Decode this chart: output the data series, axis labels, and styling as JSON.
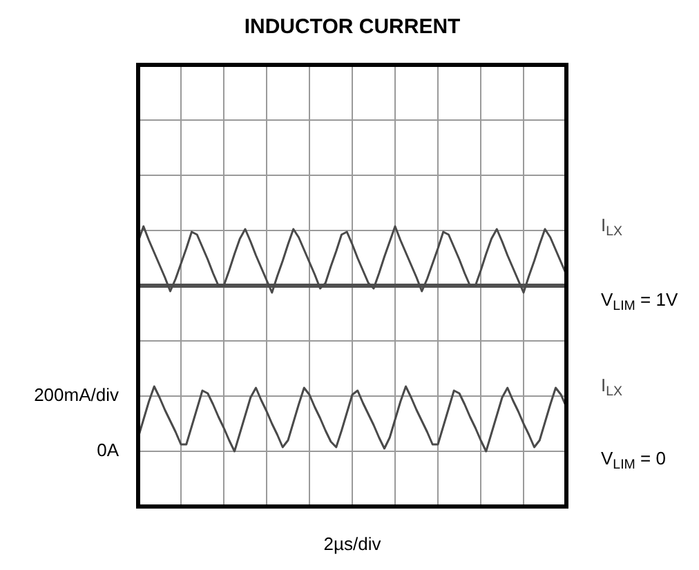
{
  "chart_data": {
    "type": "line",
    "title": "INDUCTOR CURRENT",
    "xlabel": "2µs/div",
    "categories": [
      null,
      null,
      null,
      null,
      null,
      null,
      null,
      null,
      null,
      null,
      null,
      null,
      null,
      null,
      null,
      null,
      null,
      null,
      null,
      null,
      null,
      null,
      null,
      null,
      null,
      null,
      null,
      null,
      null,
      null,
      null,
      null,
      null,
      null,
      null,
      null,
      null,
      null,
      null,
      null,
      null,
      null,
      null,
      null,
      null,
      null,
      null,
      null,
      null,
      null,
      null,
      null,
      null,
      null,
      null,
      null,
      null,
      null,
      null,
      null,
      null,
      null,
      null,
      null,
      null,
      null,
      null,
      null,
      null,
      null,
      null,
      null,
      null,
      null,
      null,
      null,
      null,
      null,
      null,
      null,
      null
    ],
    "ylim": [
      -200,
      1400
    ],
    "yticks": [
      {
        "value": -200,
        "label": null
      },
      {
        "value": 0,
        "label": "0A"
      },
      {
        "value": 200,
        "label": "200mA/div"
      },
      {
        "value": 400,
        "label": null
      },
      {
        "value": 600,
        "label": null
      },
      {
        "value": 800,
        "label": null
      },
      {
        "value": 1000,
        "label": null
      },
      {
        "value": 1200,
        "label": null
      },
      {
        "value": 1400,
        "label": null
      }
    ],
    "tick_labels": "y",
    "grid": true,
    "legend": false,
    "marker": "none",
    "line_style": "solid",
    "series": [
      {
        "name": "I$_{LX}$",
        "color": "#4a4a4a",
        "values": [
          760,
          815,
          765,
          720,
          675,
          630,
          580,
          625,
          680,
          735,
          795,
          785,
          740,
          695,
          645,
          600,
          600,
          655,
          715,
          770,
          805,
          760,
          710,
          665,
          620,
          575,
          635,
          690,
          750,
          805,
          775,
          730,
          685,
          640,
          590,
          610,
          670,
          725,
          785,
          795,
          750,
          700,
          655,
          610,
          590,
          645,
          705,
          760,
          815,
          765,
          720,
          675,
          630,
          580,
          625,
          680,
          735,
          795,
          785,
          740,
          695,
          645,
          600,
          600,
          655,
          715,
          770,
          805,
          760,
          710,
          665,
          620,
          575,
          635,
          690,
          750,
          805,
          775,
          730,
          685,
          640
        ]
      },
      {
        "name": "I$_{LX}$",
        "color": "#4a4a4a",
        "values": [
          50,
          115,
          180,
          235,
          195,
          150,
          110,
          70,
          25,
          25,
          90,
          155,
          220,
          210,
          170,
          125,
          85,
          40,
          0,
          65,
          130,
          195,
          230,
          185,
          145,
          100,
          60,
          15,
          40,
          105,
          170,
          230,
          205,
          160,
          120,
          75,
          35,
          15,
          75,
          140,
          205,
          220,
          175,
          135,
          95,
          50,
          10,
          50,
          115,
          180,
          235,
          195,
          150,
          110,
          70,
          25,
          25,
          90,
          155,
          220,
          210,
          170,
          125,
          85,
          40,
          0,
          65,
          130,
          195,
          230,
          185,
          145,
          100,
          60,
          15,
          40,
          105,
          170,
          230,
          205,
          160
        ]
      }
    ],
    "ref_lines": [
      {
        "axis": "y",
        "value": 600,
        "color": "#505050"
      }
    ],
    "annotations": [
      "V$_{LIM}$ = 1V",
      "V$_{LIM}$ = 0"
    ]
  }
}
